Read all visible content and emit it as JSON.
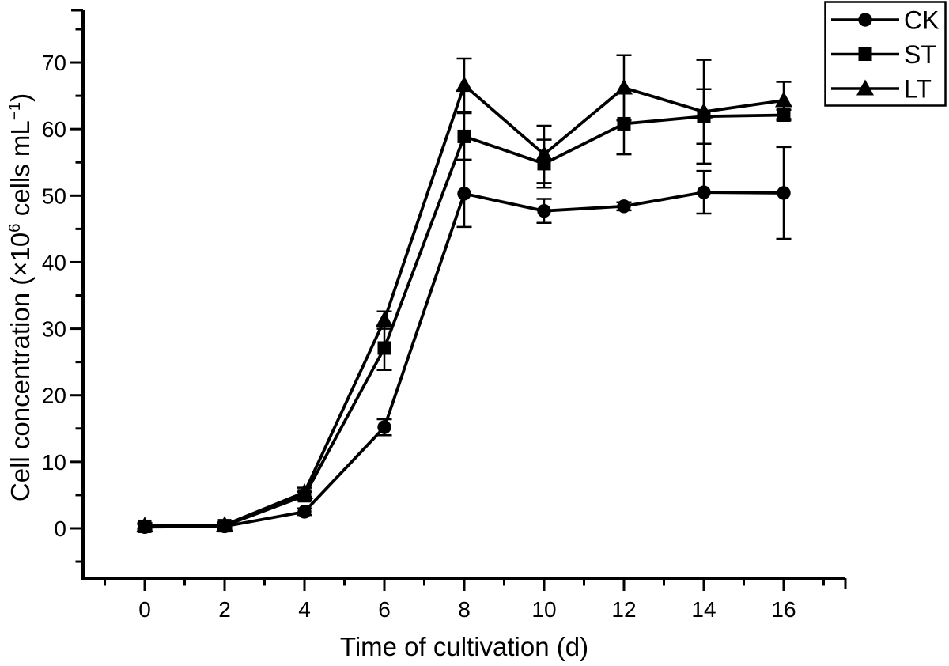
{
  "figure": {
    "background": "#ffffff",
    "ink_color": "#000000"
  },
  "chart_data": {
    "type": "line",
    "title": "",
    "xlabel": "Time of cultivation (d)",
    "ylabel": "Cell concentration (×10⁶ cells mL⁻¹)",
    "ylabel_parts": [
      {
        "text": "Cell concentration (×10"
      },
      {
        "text": "6",
        "sup": true
      },
      {
        "text": " cells mL"
      },
      {
        "text": "−1",
        "sup": true
      },
      {
        "text": ")"
      }
    ],
    "x": [
      0,
      2,
      4,
      6,
      8,
      10,
      12,
      14,
      16
    ],
    "series": [
      {
        "name": "CK",
        "marker": "circle",
        "values": [
          0.2,
          0.3,
          2.5,
          15.2,
          50.3,
          47.7,
          48.4,
          50.5,
          50.4
        ],
        "errors": [
          0.4,
          0.4,
          0.5,
          1.2,
          5.0,
          1.8,
          0.6,
          3.2,
          6.9
        ]
      },
      {
        "name": "ST",
        "marker": "square",
        "values": [
          0.3,
          0.4,
          4.9,
          27.1,
          58.9,
          54.8,
          60.8,
          61.9,
          62.1
        ],
        "errors": [
          0.4,
          0.4,
          0.6,
          3.3,
          3.5,
          3.6,
          4.6,
          4.1,
          0.8
        ]
      },
      {
        "name": "LT",
        "marker": "triangle",
        "values": [
          0.4,
          0.5,
          5.4,
          31.3,
          66.6,
          56.2,
          66.2,
          62.6,
          64.3
        ],
        "errors": [
          0.4,
          0.4,
          0.7,
          1.3,
          4.0,
          4.3,
          4.9,
          7.8,
          2.8
        ]
      }
    ],
    "xticks_major": [
      0,
      2,
      4,
      6,
      8,
      10,
      12,
      14,
      16
    ],
    "xticks_minor": [
      -1,
      1,
      3,
      5,
      7,
      9,
      11,
      13,
      15,
      17
    ],
    "yticks_major": [
      0,
      10,
      20,
      30,
      40,
      50,
      60,
      70
    ],
    "yticks_minor": [
      -5,
      5,
      15,
      25,
      35,
      45,
      55,
      65,
      75
    ],
    "xlim": [
      -1.545,
      17.545
    ],
    "ylim": [
      -7.49,
      77.85
    ],
    "grid": false,
    "legend": {
      "position": "top-right",
      "entries": [
        "CK",
        "ST",
        "LT"
      ]
    }
  }
}
